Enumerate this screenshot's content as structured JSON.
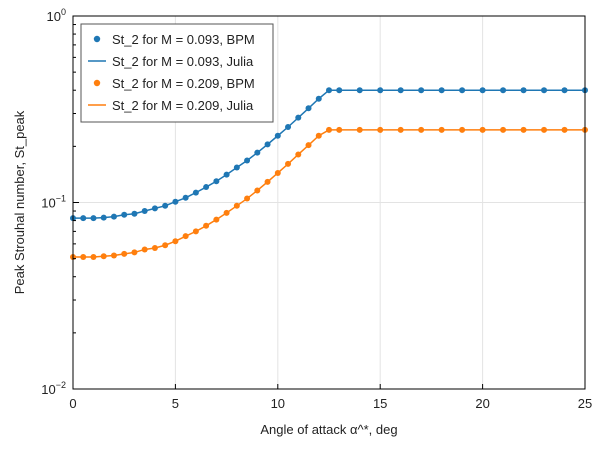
{
  "chart_data": {
    "type": "scatter",
    "title": "",
    "xlabel": "Angle of attack α^*, deg",
    "ylabel": "Peak Strouhal number, St_peak",
    "xlim": [
      0,
      25
    ],
    "ylim": [
      0.01,
      1
    ],
    "yscale": "log",
    "grid": true,
    "legend_position": "top-left",
    "x_ticks": [
      "0",
      "5",
      "10",
      "15",
      "20",
      "25"
    ],
    "y_ticks": [
      {
        "value": 1,
        "base": "10",
        "exp": "0"
      },
      {
        "value": 0.1,
        "base": "10",
        "exp": "−1"
      },
      {
        "value": 0.01,
        "base": "10",
        "exp": "−2"
      }
    ],
    "series": [
      {
        "name": "St_2 for M = 0.093, BPM",
        "style": "markers",
        "color": "#1f77b4",
        "x": [
          0,
          0.5,
          1,
          1.5,
          2,
          2.5,
          3,
          3.5,
          4,
          4.5,
          5,
          5.5,
          6,
          6.5,
          7,
          7.5,
          8,
          8.5,
          9,
          9.5,
          10,
          10.5,
          11,
          11.5,
          12,
          12.5,
          13,
          14,
          15,
          16,
          17,
          18,
          19,
          20,
          21,
          22,
          23,
          24,
          25
        ],
        "y": [
          0.0825,
          0.0825,
          0.0825,
          0.083,
          0.084,
          0.086,
          0.087,
          0.09,
          0.093,
          0.096,
          0.101,
          0.106,
          0.113,
          0.121,
          0.13,
          0.141,
          0.154,
          0.168,
          0.185,
          0.205,
          0.228,
          0.254,
          0.285,
          0.32,
          0.36,
          0.4,
          0.4,
          0.4,
          0.4,
          0.4,
          0.4,
          0.4,
          0.4,
          0.4,
          0.4,
          0.4,
          0.4,
          0.4,
          0.4
        ]
      },
      {
        "name": "St_2 for M = 0.093, Julia",
        "style": "line",
        "color": "#1f77b4",
        "x": [
          0,
          0.5,
          1,
          1.5,
          2,
          2.5,
          3,
          3.5,
          4,
          4.5,
          5,
          5.5,
          6,
          6.5,
          7,
          7.5,
          8,
          8.5,
          9,
          9.5,
          10,
          10.5,
          11,
          11.5,
          12,
          12.5,
          13,
          14,
          15,
          16,
          17,
          18,
          19,
          20,
          21,
          22,
          23,
          24,
          25
        ],
        "y": [
          0.0825,
          0.0825,
          0.0825,
          0.083,
          0.084,
          0.086,
          0.087,
          0.09,
          0.093,
          0.096,
          0.101,
          0.106,
          0.113,
          0.121,
          0.13,
          0.141,
          0.154,
          0.168,
          0.185,
          0.205,
          0.228,
          0.254,
          0.285,
          0.32,
          0.36,
          0.4,
          0.4,
          0.4,
          0.4,
          0.4,
          0.4,
          0.4,
          0.4,
          0.4,
          0.4,
          0.4,
          0.4,
          0.4,
          0.4
        ]
      },
      {
        "name": "St_2 for M = 0.209, BPM",
        "style": "markers",
        "color": "#ff7f0e",
        "x": [
          0,
          0.5,
          1,
          1.5,
          2,
          2.5,
          3,
          3.5,
          4,
          4.5,
          5,
          5.5,
          6,
          6.5,
          7,
          7.5,
          8,
          8.5,
          9,
          9.5,
          10,
          10.5,
          11,
          11.5,
          12,
          12.5,
          13,
          14,
          15,
          16,
          17,
          18,
          19,
          20,
          21,
          22,
          23,
          24,
          25
        ],
        "y": [
          0.051,
          0.051,
          0.051,
          0.0515,
          0.052,
          0.053,
          0.054,
          0.056,
          0.057,
          0.059,
          0.062,
          0.066,
          0.07,
          0.075,
          0.081,
          0.088,
          0.096,
          0.105,
          0.116,
          0.129,
          0.144,
          0.161,
          0.181,
          0.203,
          0.228,
          0.245,
          0.245,
          0.245,
          0.245,
          0.245,
          0.245,
          0.245,
          0.245,
          0.245,
          0.245,
          0.245,
          0.245,
          0.245,
          0.245
        ]
      },
      {
        "name": "St_2 for M = 0.209, Julia",
        "style": "line",
        "color": "#ff7f0e",
        "x": [
          0,
          0.5,
          1,
          1.5,
          2,
          2.5,
          3,
          3.5,
          4,
          4.5,
          5,
          5.5,
          6,
          6.5,
          7,
          7.5,
          8,
          8.5,
          9,
          9.5,
          10,
          10.5,
          11,
          11.5,
          12,
          12.5,
          13,
          14,
          15,
          16,
          17,
          18,
          19,
          20,
          21,
          22,
          23,
          24,
          25
        ],
        "y": [
          0.051,
          0.051,
          0.051,
          0.0515,
          0.052,
          0.053,
          0.054,
          0.056,
          0.057,
          0.059,
          0.062,
          0.066,
          0.07,
          0.075,
          0.081,
          0.088,
          0.096,
          0.105,
          0.116,
          0.129,
          0.144,
          0.161,
          0.181,
          0.203,
          0.228,
          0.245,
          0.245,
          0.245,
          0.245,
          0.245,
          0.245,
          0.245,
          0.245,
          0.245,
          0.245,
          0.245,
          0.245,
          0.245,
          0.245
        ]
      }
    ]
  }
}
